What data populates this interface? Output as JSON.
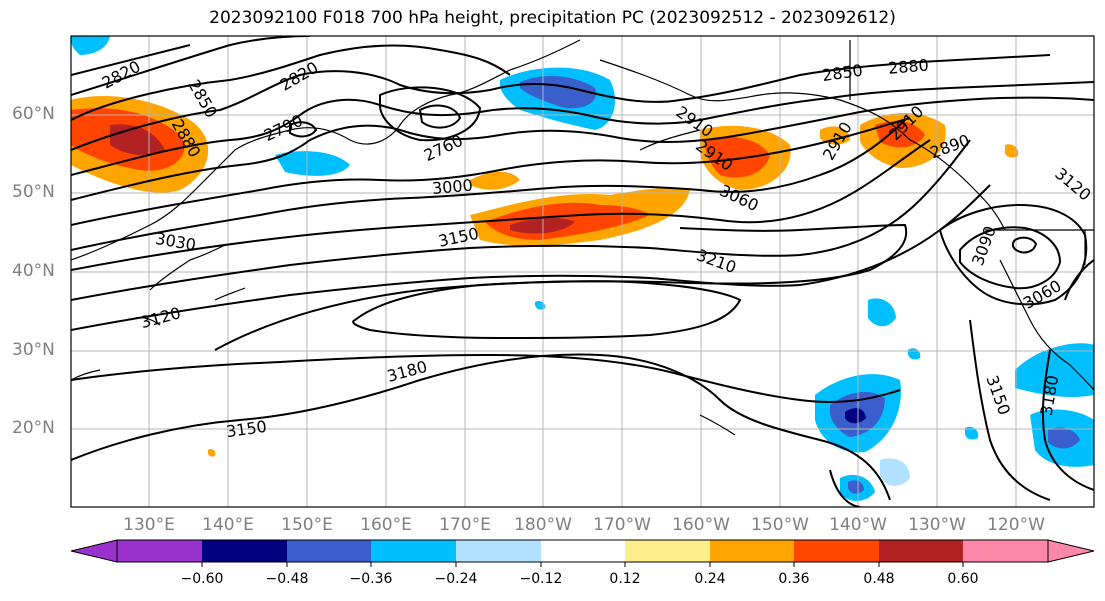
{
  "title": "2023092100 F018 700 hPa height, precipitation PC (2023092512 - 2023092612)",
  "lat_labels": [
    "60°N",
    "50°N",
    "40°N",
    "30°N",
    "20°N"
  ],
  "lon_labels": [
    "130°E",
    "140°E",
    "150°E",
    "160°E",
    "170°E",
    "180°W",
    "170°W",
    "160°W",
    "150°W",
    "140°W",
    "130°W",
    "120°W"
  ],
  "contour_labels": [
    "2820",
    "2820",
    "2850",
    "2880",
    "2790",
    "2760",
    "2850",
    "2880",
    "2910",
    "2910",
    "2910",
    "2890",
    "2910",
    "3000",
    "3060",
    "3030",
    "3150",
    "3120",
    "3120",
    "3090",
    "3060",
    "3210",
    "3180",
    "3150",
    "3150",
    "3180"
  ],
  "colorbar": {
    "ticks": [
      "−0.60",
      "−0.48",
      "−0.36",
      "−0.24",
      "−0.12",
      "0.12",
      "0.24",
      "0.36",
      "0.48",
      "0.60"
    ],
    "colors": [
      "#9932cc",
      "#000080",
      "#3a5fcd",
      "#00bfff",
      "#b0e2ff",
      "#ffffff",
      "#ffec8b",
      "#ffa500",
      "#ff4500",
      "#b22222",
      "#ff88aa"
    ]
  },
  "shading_colors": {
    "neg_light": "#b0e2ff",
    "neg_1": "#00bfff",
    "neg_2": "#3a5fcd",
    "neg_3": "#000080",
    "pos_light": "#ffec8b",
    "pos_1": "#ffa500",
    "pos_2": "#ff4500",
    "pos_3": "#b22222"
  }
}
